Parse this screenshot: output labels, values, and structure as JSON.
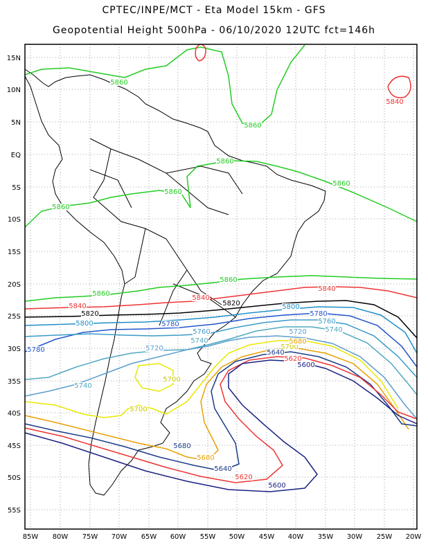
{
  "title_line1": "CPTEC/INPE/MCT -  Eta Model 15km - GFS",
  "title_line2": "Geopotential Height 500hPa - 06/10/2020 12UTC fct=146h",
  "lat_labels": [
    "15N",
    "10N",
    "5N",
    "EQ",
    "5S",
    "10S",
    "15S",
    "20S",
    "25S",
    "30S",
    "35S",
    "40S",
    "45S",
    "50S",
    "55S"
  ],
  "lon_labels": [
    "85W",
    "80W",
    "75W",
    "70W",
    "65W",
    "60W",
    "55W",
    "50W",
    "45W",
    "40W",
    "35W",
    "30W",
    "25W",
    "20W"
  ],
  "contour_levels": [
    {
      "value": "5860",
      "color": "#22cc22"
    },
    {
      "value": "5840",
      "color": "#ee3333"
    },
    {
      "value": "5820",
      "color": "#000000"
    },
    {
      "value": "5800",
      "color": "#1f8fc8"
    },
    {
      "value": "5780",
      "color": "#2255cc"
    },
    {
      "value": "5760",
      "color": "#3a9ac8"
    },
    {
      "value": "5740",
      "color": "#50a8c0"
    },
    {
      "value": "5720",
      "color": "#5a9ecd"
    },
    {
      "value": "5700",
      "color": "#e8e800"
    },
    {
      "value": "5680",
      "color": "#e8a000"
    },
    {
      "value": "5640",
      "color": "#1a3a88"
    },
    {
      "value": "5620",
      "color": "#ee3333"
    },
    {
      "value": "5600",
      "color": "#1a2080"
    }
  ],
  "contour_labels": [
    {
      "text": "5860",
      "color": "#22cc22"
    },
    {
      "text": "5860",
      "color": "#22cc22"
    },
    {
      "text": "5860",
      "color": "#22cc22"
    },
    {
      "text": "5860",
      "color": "#22cc22"
    },
    {
      "text": "5860",
      "color": "#22cc22"
    },
    {
      "text": "5860",
      "color": "#22cc22"
    },
    {
      "text": "5860",
      "color": "#22cc22"
    },
    {
      "text": "5860",
      "color": "#22cc22"
    },
    {
      "text": "5840",
      "color": "#ee3333"
    },
    {
      "text": "5840",
      "color": "#ee3333"
    },
    {
      "text": "5840",
      "color": "#ee3333"
    },
    {
      "text": "5840",
      "color": "#ee3333"
    },
    {
      "text": "5820",
      "color": "#000000"
    },
    {
      "text": "5820",
      "color": "#000000"
    },
    {
      "text": "5800",
      "color": "#1f8fc8"
    },
    {
      "text": "5800",
      "color": "#1f8fc8"
    },
    {
      "text": "5780",
      "color": "#2255cc"
    },
    {
      "text": "5780",
      "color": "#2255cc"
    },
    {
      "text": "5780",
      "color": "#2255cc"
    },
    {
      "text": "5760",
      "color": "#3a9ac8"
    },
    {
      "text": "5760",
      "color": "#3a9ac8"
    },
    {
      "text": "5740",
      "color": "#50a8c0"
    },
    {
      "text": "5740",
      "color": "#50a8c0"
    },
    {
      "text": "5740",
      "color": "#50a8c0"
    },
    {
      "text": "5720",
      "color": "#5a9ecd"
    },
    {
      "text": "5720",
      "color": "#5a9ecd"
    },
    {
      "text": "5700",
      "color": "#c8c800"
    },
    {
      "text": "5700",
      "color": "#c8c800"
    },
    {
      "text": "5700",
      "color": "#c8c800"
    },
    {
      "text": "5680",
      "color": "#e8a000"
    },
    {
      "text": "5680",
      "color": "#1a3a88"
    },
    {
      "text": "5680",
      "color": "#e8a000"
    },
    {
      "text": "5640",
      "color": "#1a3a88"
    },
    {
      "text": "5640",
      "color": "#1a3a88"
    },
    {
      "text": "5620",
      "color": "#ee3333"
    },
    {
      "text": "5620",
      "color": "#ee3333"
    },
    {
      "text": "5600",
      "color": "#1a2080"
    },
    {
      "text": "5600",
      "color": "#1a2080"
    }
  ]
}
